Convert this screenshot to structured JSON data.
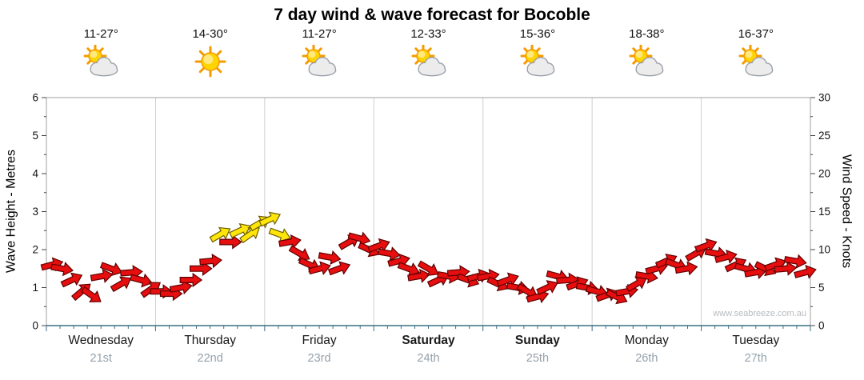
{
  "title": "7 day wind & wave forecast for Bocoble",
  "watermark": "www.seabreeze.com.au",
  "colors": {
    "arrow_normal": "#e60e0e",
    "arrow_normal_outline": "#5f0000",
    "arrow_strong": "#ffe60a",
    "arrow_strong_outline": "#6e5e00",
    "grid_line": "#cfcfcf",
    "plot_border": "#a0a0a0",
    "axis_tick": "#444444",
    "bottom_axis": "#3a7083",
    "day_name_text": "#1a1a1a",
    "date_text": "#95a1ab",
    "watermark_text": "#b7bcc1"
  },
  "chart_data": {
    "type": "scatter",
    "title": "7 day wind & wave forecast for Bocoble",
    "grid": "vertical-day-separators",
    "legend": false,
    "left_axis": {
      "label": "Wave Height - Metres",
      "range": [
        0,
        6
      ],
      "ticks": [
        0,
        1,
        2,
        3,
        4,
        5,
        6
      ]
    },
    "right_axis": {
      "label": "Wind Speed - Knots",
      "range": [
        0,
        30
      ],
      "ticks": [
        0,
        5,
        10,
        15,
        20,
        25,
        30
      ]
    },
    "days": [
      {
        "name": "Wednesday",
        "date": "21st",
        "temp": "11-27°",
        "icon": "partly-cloudy",
        "bold": false
      },
      {
        "name": "Thursday",
        "date": "22nd",
        "temp": "14-30°",
        "icon": "sunny",
        "bold": false
      },
      {
        "name": "Friday",
        "date": "23rd",
        "temp": "11-27°",
        "icon": "partly-cloudy",
        "bold": false
      },
      {
        "name": "Saturday",
        "date": "24th",
        "temp": "12-33°",
        "icon": "partly-cloudy",
        "bold": true
      },
      {
        "name": "Sunday",
        "date": "25th",
        "temp": "15-36°",
        "icon": "partly-cloudy",
        "bold": true
      },
      {
        "name": "Monday",
        "date": "26th",
        "temp": "18-38°",
        "icon": "partly-cloudy",
        "bold": false
      },
      {
        "name": "Tuesday",
        "date": "27th",
        "temp": "16-37°",
        "icon": "partly-cloudy",
        "bold": false
      }
    ],
    "wind_series": {
      "name": "Wind speed & direction arrows",
      "x_unit": "days",
      "x_start": 0.05,
      "x_step": 0.0908,
      "knots": [
        8.0,
        7.5,
        6.0,
        4.5,
        4.0,
        6.5,
        7.5,
        5.5,
        7.0,
        6.0,
        4.8,
        4.5,
        4.2,
        5.0,
        6.0,
        7.5,
        8.5,
        12.0,
        11.0,
        12.5,
        12.0,
        13.5,
        14.0,
        12.0,
        11.0,
        9.5,
        8.0,
        7.5,
        9.0,
        7.5,
        11.0,
        11.5,
        10.0,
        10.5,
        9.5,
        8.5,
        7.5,
        6.5,
        7.5,
        6.0,
        6.5,
        7.0,
        6.0,
        6.5,
        6.5,
        5.5,
        6.0,
        5.0,
        4.5,
        3.8,
        5.0,
        6.5,
        6.0,
        5.5,
        5.0,
        4.5,
        4.0,
        3.8,
        4.5,
        5.5,
        6.5,
        7.5,
        8.5,
        8.0,
        7.5,
        9.5,
        10.5,
        9.5,
        9.0,
        8.0,
        7.5,
        7.0,
        7.5,
        8.0,
        7.5,
        8.5,
        7.0
      ],
      "direction_deg": [
        15,
        -10,
        25,
        40,
        -35,
        10,
        -20,
        30,
        5,
        -15,
        35,
        0,
        0,
        10,
        0,
        0,
        5,
        30,
        0,
        25,
        35,
        30,
        25,
        -20,
        10,
        -30,
        -25,
        15,
        -10,
        20,
        30,
        -15,
        -25,
        20,
        -10,
        15,
        -20,
        10,
        -30,
        25,
        -10,
        5,
        -20,
        15,
        10,
        -25,
        20,
        -10,
        -30,
        15,
        25,
        -15,
        5,
        20,
        -10,
        -15,
        20,
        -25,
        10,
        30,
        -10,
        15,
        25,
        -20,
        10,
        30,
        20,
        -10,
        15,
        25,
        -15,
        10,
        -25,
        20,
        5,
        -10,
        15
      ],
      "yellow_indices": [
        17,
        19,
        20,
        21,
        22,
        23
      ]
    }
  }
}
